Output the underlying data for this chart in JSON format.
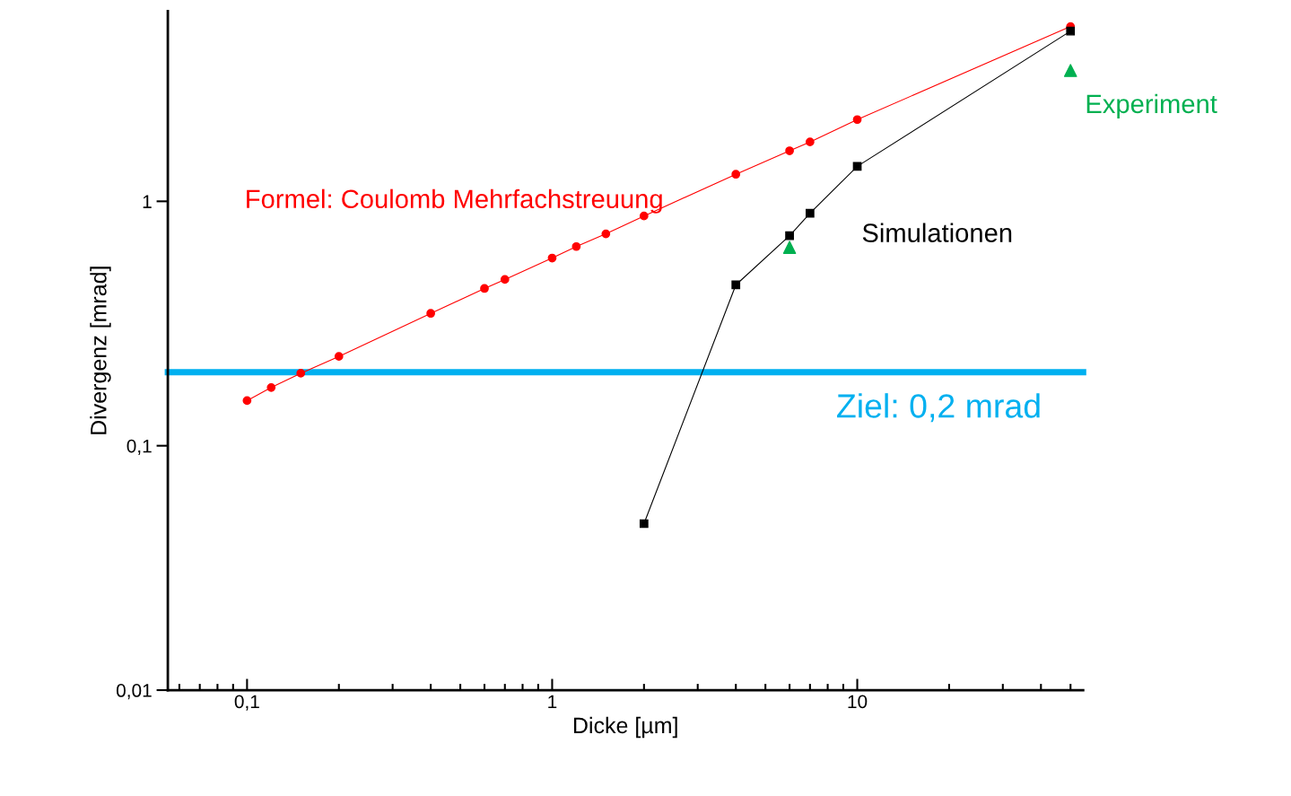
{
  "chart_data": {
    "type": "line",
    "xlabel": "Dicke [µm]",
    "ylabel": "Divergenz [mrad]",
    "log": "xy",
    "xlim": [
      0.055,
      55
    ],
    "ylim": [
      0.01,
      6
    ],
    "xticks": [
      {
        "value": 0.1,
        "label": "0,1"
      },
      1,
      10
    ],
    "yticks": [
      {
        "value": 0.01,
        "label": "0,01"
      },
      {
        "value": 0.1,
        "label": "0,1"
      },
      1
    ],
    "grid": false,
    "legend": false,
    "series": [
      {
        "name": "Formel: Coulomb Mehrfachstreuung",
        "color": "#ff0000",
        "marker": "circle",
        "x": [
          0.1,
          0.12,
          0.15,
          0.2,
          0.4,
          0.6,
          0.7,
          1,
          1.2,
          1.5,
          2,
          4,
          6,
          7,
          10,
          50
        ],
        "values": [
          0.153,
          0.173,
          0.198,
          0.232,
          0.348,
          0.44,
          0.479,
          0.586,
          0.653,
          0.736,
          0.871,
          1.29,
          1.61,
          1.75,
          2.16,
          5.19
        ]
      },
      {
        "name": "Simulationen",
        "color": "#000000",
        "marker": "square",
        "x": [
          2,
          4,
          6,
          7,
          10,
          50
        ],
        "values": [
          0.048,
          0.455,
          0.723,
          0.893,
          1.39,
          4.97
        ]
      },
      {
        "name": "Experiment",
        "type": "scatter",
        "color": "#00b050",
        "marker": "triangle",
        "x": [
          6,
          50
        ],
        "values": [
          0.648,
          3.43
        ]
      }
    ],
    "ref_lines": [
      {
        "axis": "y",
        "value": 0.2,
        "label": "Ziel: 0,2 mrad",
        "color": "#00b0f0"
      }
    ]
  }
}
